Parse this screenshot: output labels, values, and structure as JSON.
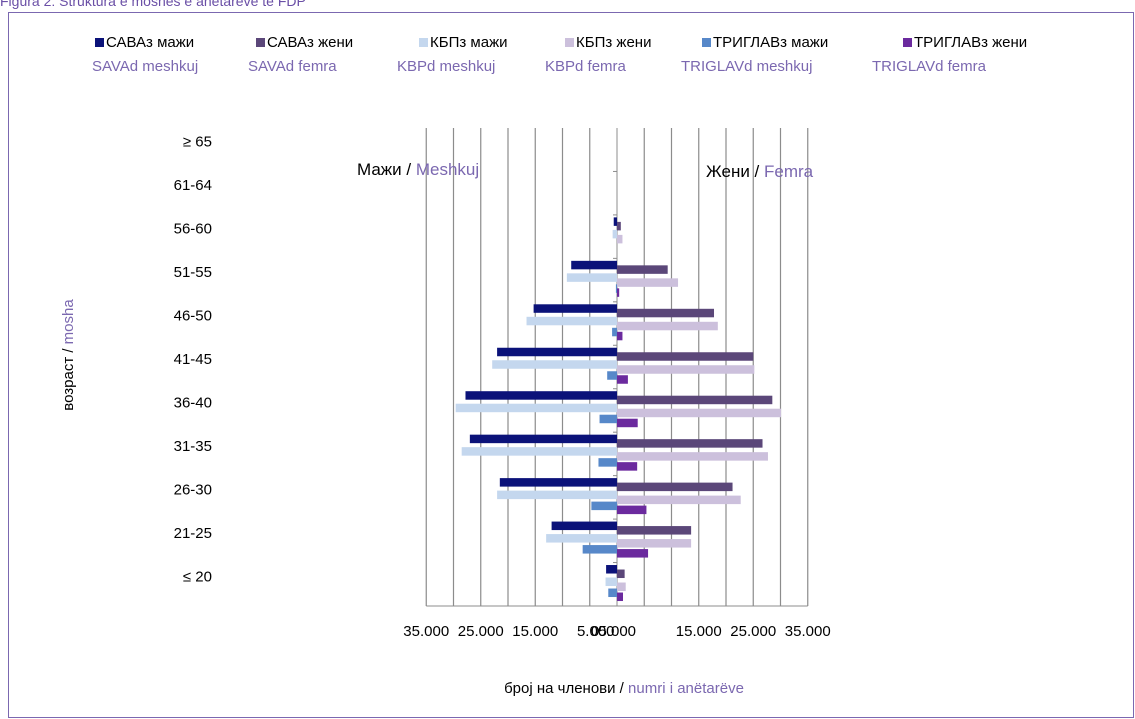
{
  "caption": "Figura 2: Struktura e moshës e anëtarëve te FDP",
  "colors": {
    "sava_m": "#0b1279",
    "sava_f": "#5b4779",
    "kbp_m": "#c4d7ee",
    "kbp_f": "#ccc0dc",
    "triglav_m": "#5788c9",
    "triglav_f": "#6b2a9e",
    "secondary_text": "#7b68b0"
  },
  "legend": [
    {
      "label": "САВАз мажи",
      "sub": "SAVAd meshkuj",
      "color": "#0b1279"
    },
    {
      "label": "САВАз жени",
      "sub": "SAVAd femra",
      "color": "#5b4779"
    },
    {
      "label": "КБПз мажи",
      "sub": "KBPd meshkuj",
      "color": "#c4d7ee"
    },
    {
      "label": "КБПз жени",
      "sub": "KBPd femra",
      "color": "#ccc0dc"
    },
    {
      "label": "ТРИГЛАВз мажи",
      "sub": "TRIGLAVd meshkuj",
      "color": "#5788c9"
    },
    {
      "label": "ТРИГЛАВз жени",
      "sub": "TRIGLAVd femra",
      "color": "#6b2a9e"
    }
  ],
  "chart_data": {
    "type": "bar",
    "orientation": "horizontal-pyramid",
    "categories": [
      "≤ 20",
      "21-25",
      "26-30",
      "31-35",
      "36-40",
      "41-45",
      "46-50",
      "51-55",
      "56-60",
      "61-64",
      "≥ 65"
    ],
    "series": [
      {
        "name": "САВАз мажи",
        "side": "left",
        "values": [
          2000,
          12000,
          21500,
          27000,
          27800,
          22000,
          15300,
          8400,
          600,
          0,
          0
        ]
      },
      {
        "name": "САВАз жени",
        "side": "right",
        "values": [
          1400,
          13600,
          21200,
          26700,
          28500,
          25000,
          17800,
          9300,
          700,
          0,
          0
        ]
      },
      {
        "name": "КБПз мажи",
        "side": "left",
        "values": [
          2100,
          13000,
          22000,
          28500,
          29600,
          22900,
          16600,
          9200,
          800,
          0,
          0
        ]
      },
      {
        "name": "КБПз жени",
        "side": "right",
        "values": [
          1600,
          13600,
          22700,
          27700,
          30100,
          25200,
          18500,
          11200,
          1000,
          0,
          0
        ]
      },
      {
        "name": "ТРИГЛАВз мажи",
        "side": "left",
        "values": [
          1600,
          6300,
          4700,
          3400,
          3200,
          1800,
          900,
          200,
          0,
          0,
          0
        ]
      },
      {
        "name": "ТРИГЛАВз жени",
        "side": "right",
        "values": [
          1100,
          5700,
          5400,
          3700,
          3800,
          2000,
          1000,
          400,
          0,
          0,
          0
        ]
      }
    ],
    "x_ticks": [
      "35.000",
      "25.000",
      "15.000",
      "5.000",
      "0",
      "5.000",
      "15.000",
      "25.000",
      "35.000"
    ],
    "xlim": [
      -35000,
      35000
    ],
    "left_label": {
      "mk": "Мажи",
      "sep": " / ",
      "sq": "Meshkuj"
    },
    "right_label": {
      "mk": "Жени",
      "sep": " / ",
      "sq": "Femra"
    },
    "xlabel": {
      "mk": "број на членови",
      "sep": " / ",
      "sq": "numri i anëtarëve"
    },
    "ylabel": {
      "mk": "возраст",
      "sep": " / ",
      "sq": "mosha"
    },
    "grid": true
  }
}
